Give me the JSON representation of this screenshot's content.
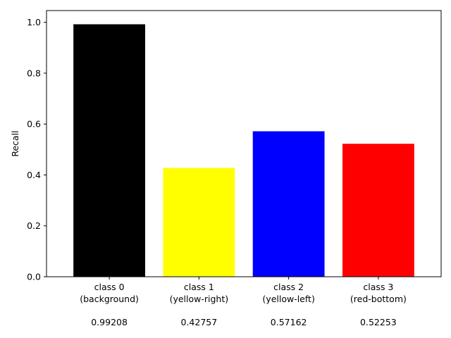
{
  "chart_data": {
    "type": "bar",
    "categories": [
      {
        "name": "class 0",
        "sub": "(background)"
      },
      {
        "name": "class 1",
        "sub": "(yellow-right)"
      },
      {
        "name": "class 2",
        "sub": "(yellow-left)"
      },
      {
        "name": "class 3",
        "sub": "(red-bottom)"
      }
    ],
    "values": [
      0.99208,
      0.42757,
      0.57162,
      0.52253
    ],
    "value_labels": [
      "0.99208",
      "0.42757",
      "0.57162",
      "0.52253"
    ],
    "colors": [
      "#000000",
      "#ffff00",
      "#0000ff",
      "#ff0000"
    ],
    "xlabel": "",
    "ylabel": "Recall",
    "ylim": [
      0,
      1.046
    ],
    "yticks": [
      0.0,
      0.2,
      0.4,
      0.6,
      0.8,
      1.0
    ],
    "ytick_labels": [
      "0.0",
      "0.2",
      "0.4",
      "0.6",
      "0.8",
      "1.0"
    ],
    "grid": false,
    "legend": "none"
  }
}
